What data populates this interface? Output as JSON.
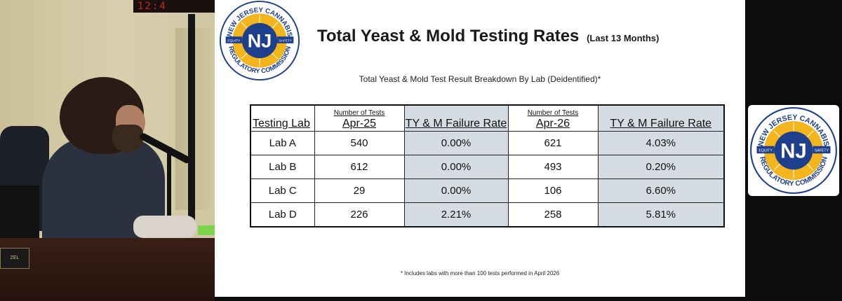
{
  "camera": {
    "clock_text": "12:4",
    "nameplate_text": "ZEL"
  },
  "logo": {
    "arc_top": "NEW JERSEY CANNABIS",
    "arc_bottom": "REGULATORY COMMISSION",
    "left_tag": "EQUITY",
    "right_tag": "SAFETY",
    "monogram": "NJ"
  },
  "slide": {
    "title": "Total Yeast & Mold Testing Rates",
    "title_sub": "(Last 13 Months)",
    "subtitle": "Total Yeast & Mold Test Result Breakdown By Lab (Deidentified)*",
    "footnote": "* Includes labs with more than 100 tests performed in April 2026",
    "table": {
      "headers": {
        "lab": "Testing Lab",
        "tests_small": "Number of Tests",
        "period1": "Apr-25",
        "rate1": "TY & M Failure Rate",
        "tests_small2": "Number of Tests",
        "period2": "Apr-26",
        "rate2": "TY & M Failure Rate"
      },
      "rows": [
        {
          "lab": "Lab A",
          "tests1": "540",
          "rate1": "0.00%",
          "tests2": "621",
          "rate2": "4.03%"
        },
        {
          "lab": "Lab B",
          "tests1": "612",
          "rate1": "0.00%",
          "tests2": "493",
          "rate2": "0.20%"
        },
        {
          "lab": "Lab C",
          "tests1": "29",
          "rate1": "0.00%",
          "tests2": "106",
          "rate2": "6.60%"
        },
        {
          "lab": "Lab D",
          "tests1": "226",
          "rate1": "2.21%",
          "tests2": "258",
          "rate2": "5.81%"
        }
      ]
    }
  },
  "colors": {
    "table_shade": "#d6dce4",
    "logo_blue": "#1e3f8c",
    "logo_gold": "#f2b51e"
  }
}
